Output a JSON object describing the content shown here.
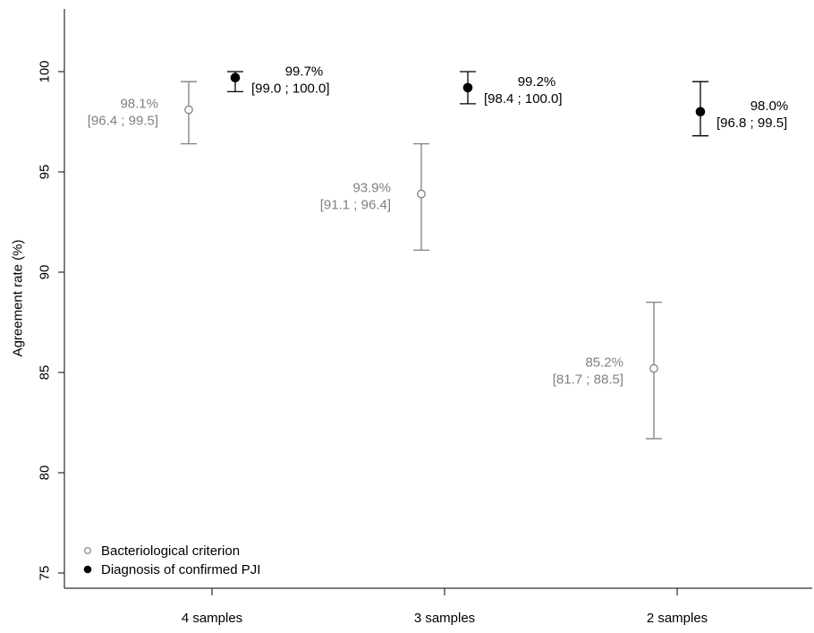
{
  "chart_data": {
    "type": "scatter",
    "title": "",
    "xlabel": "",
    "ylabel": "Agreement rate (%)",
    "categories": [
      "4 samples",
      "3 samples",
      "2 samples"
    ],
    "ylim": [
      73.5,
      103
    ],
    "yticks": [
      75,
      80,
      85,
      90,
      95,
      100
    ],
    "grid": false,
    "legend_position": "bottom-left",
    "series": [
      {
        "name": "Bacteriological criterion",
        "marker": "open-circle",
        "color": "#808080",
        "values": [
          98.1,
          93.9,
          85.2
        ],
        "ci_low": [
          96.4,
          91.1,
          81.7
        ],
        "ci_high": [
          99.5,
          96.4,
          88.5
        ],
        "labels": [
          "98.1%",
          "93.9%",
          "85.2%"
        ],
        "ci_labels": [
          "[96.4 ; 99.5]",
          "[91.1 ; 96.4]",
          "[81.7 ; 88.5]"
        ]
      },
      {
        "name": "Diagnosis of confirmed PJI",
        "marker": "filled-circle",
        "color": "#000000",
        "values": [
          99.7,
          99.2,
          98.0
        ],
        "ci_low": [
          99.0,
          98.4,
          96.8
        ],
        "ci_high": [
          100.0,
          100.0,
          99.5
        ],
        "labels": [
          "99.7%",
          "99.2%",
          "98.0%"
        ],
        "ci_labels": [
          "[99.0 ; 100.0]",
          "[98.4 ; 100.0]",
          "[96.8 ; 99.5]"
        ]
      }
    ]
  }
}
